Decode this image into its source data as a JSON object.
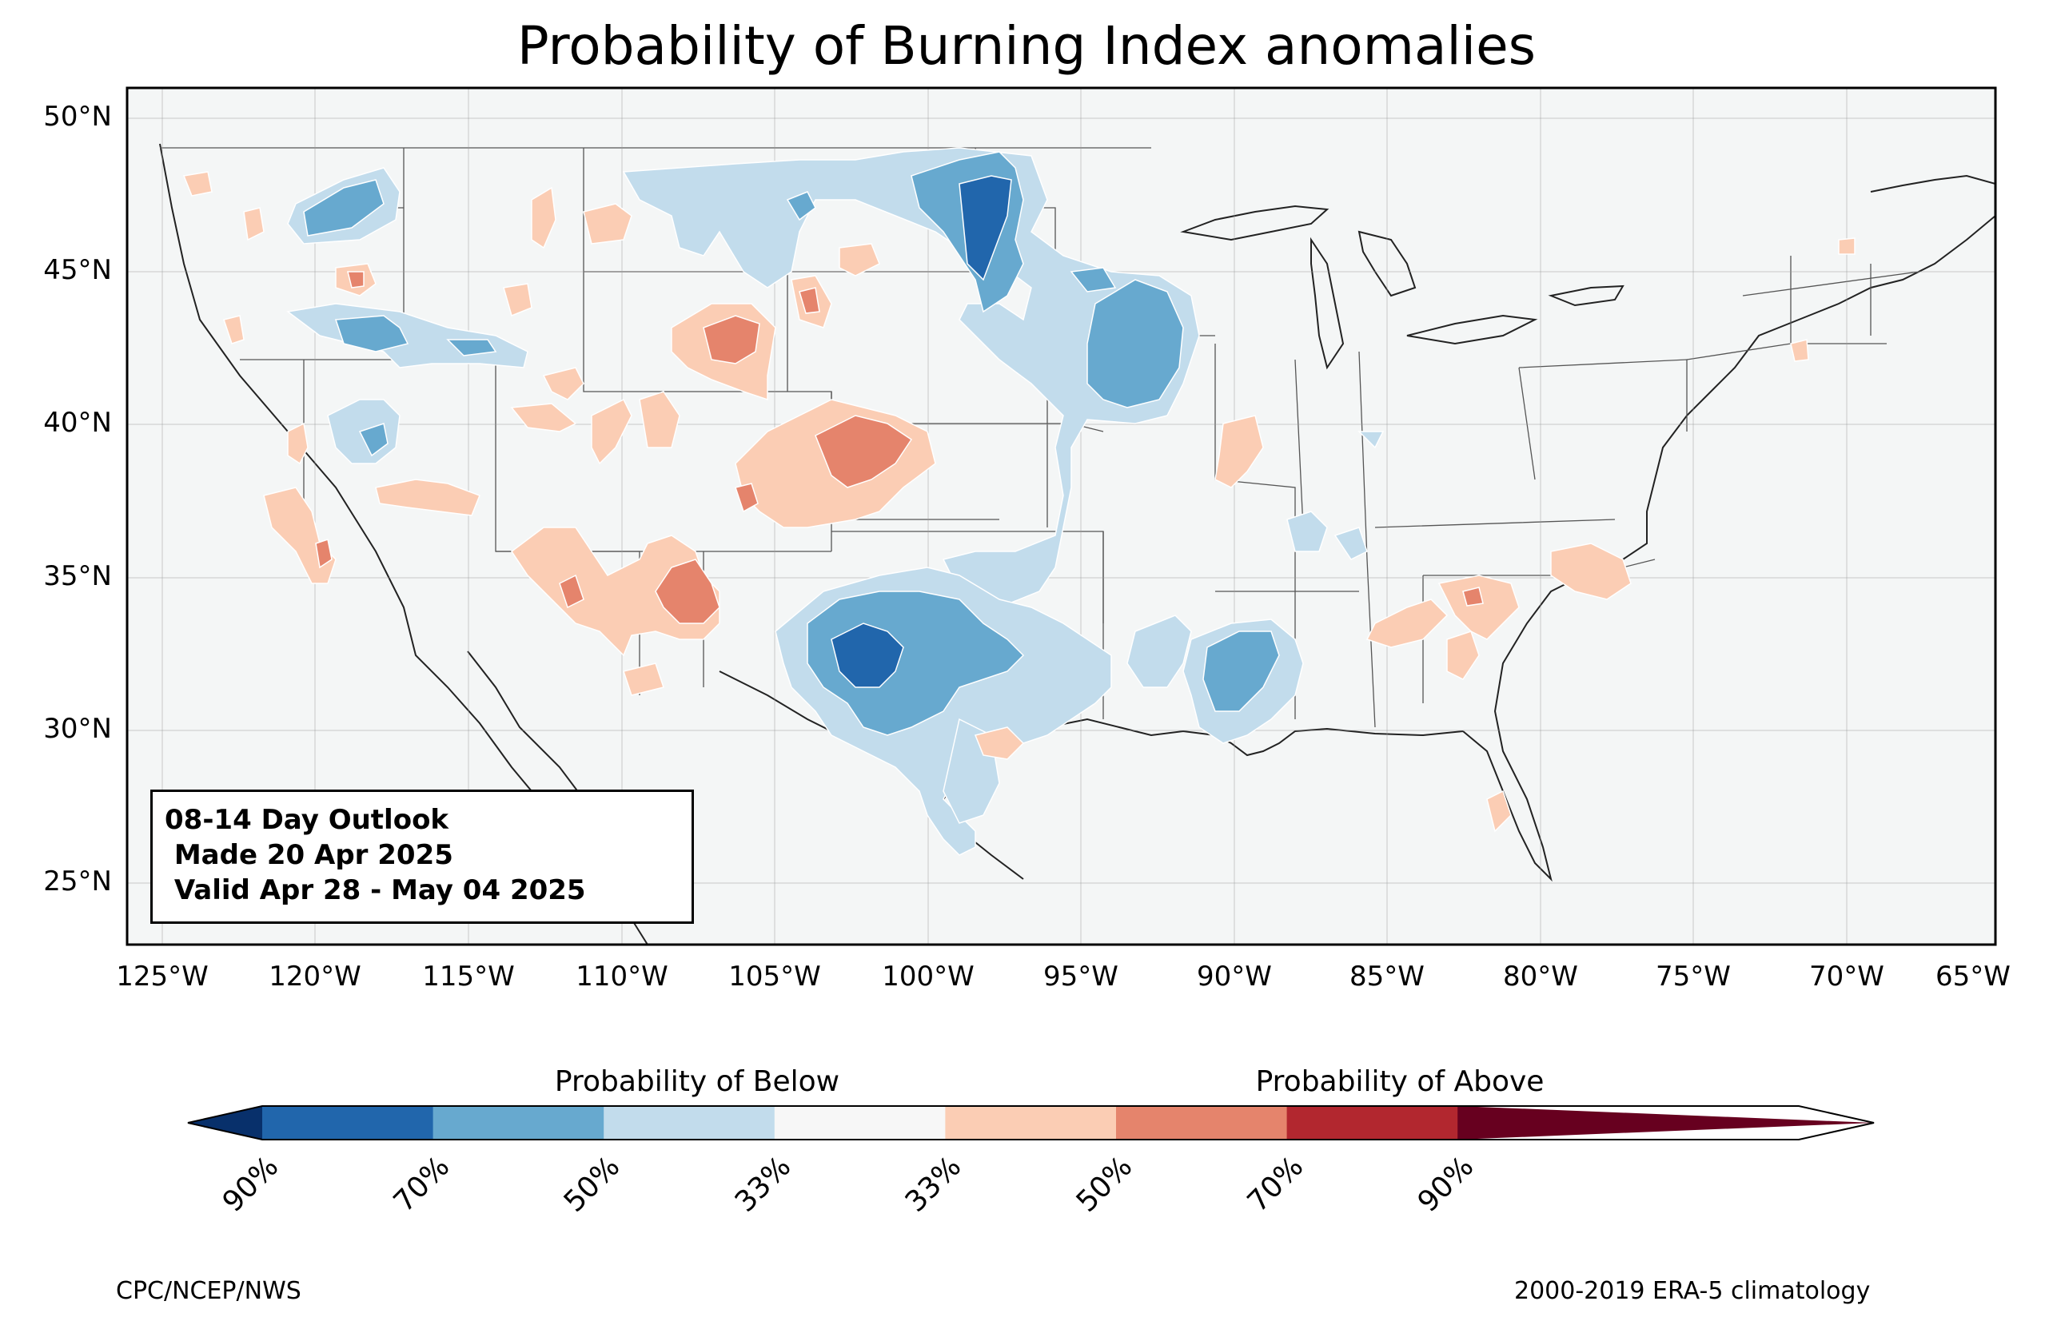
{
  "title": "Probability of Burning Index anomalies",
  "map": {
    "projection": "PlateCarree",
    "extent": {
      "lon": [
        -126,
        -65
      ],
      "lat": [
        23,
        51
      ]
    },
    "background_color": "#f4f6f6",
    "lat_ticks": [
      "50°N",
      "45°N",
      "40°N",
      "35°N",
      "30°N",
      "25°N"
    ],
    "lon_ticks": [
      "125°W",
      "120°W",
      "115°W",
      "110°W",
      "105°W",
      "100°W",
      "95°W",
      "90°W",
      "85°W",
      "80°W",
      "75°W",
      "70°W",
      "65°W"
    ]
  },
  "outlook": {
    "line1": "08-14 Day Outlook",
    "line2": " Made 20 Apr 2025",
    "line3": " Valid Apr 28 - May 04 2025"
  },
  "colorbar": {
    "below_label": "Probability of Below",
    "above_label": "Probability of Above",
    "tick_labels": [
      "90%",
      "70%",
      "50%",
      "33%",
      "33%",
      "50%",
      "70%",
      "90%"
    ],
    "colors": [
      "#08306b",
      "#2166ac",
      "#67a9cf",
      "#c2dcec",
      "#f7f7f7",
      "#fbcdb4",
      "#e5846c",
      "#b2272f",
      "#67001f"
    ]
  },
  "footer": {
    "left": "CPC/NCEP/NWS",
    "right": "2000-2019 ERA-5 climatology"
  },
  "anomaly_colors": {
    "below_33": "#c2dcec",
    "below_50": "#67a9cf",
    "below_70": "#2166ac",
    "above_33": "#fbcdb4",
    "above_50": "#e5846c"
  }
}
